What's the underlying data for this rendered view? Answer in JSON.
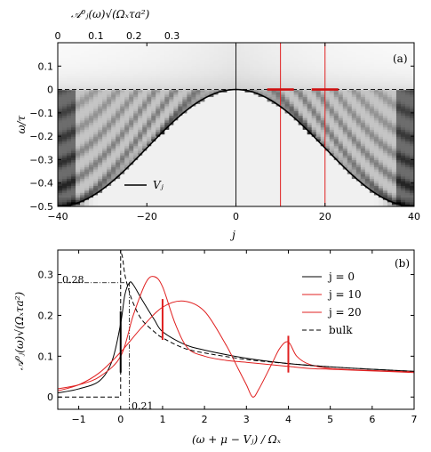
{
  "chart_data": [
    {
      "type": "heatmap",
      "panel_label": "(a)",
      "xlabel": "j",
      "ylabel": "ω/τ",
      "xlim": [
        -40,
        40
      ],
      "ylim": [
        -0.5,
        0.2
      ],
      "xticks": [
        "−40",
        "−20",
        "0",
        "20",
        "40"
      ],
      "yticks": [
        "−0.5",
        "−0.4",
        "−0.3",
        "−0.2",
        "−0.1",
        "0",
        "0.1"
      ],
      "colorbar": {
        "label": "𝒜⁰ⱼ(ω)√(Ωₓτa²)",
        "ticks": [
          "0",
          "0.1",
          "0.2",
          "0.3"
        ],
        "range": [
          0,
          0.35
        ],
        "scale": "white-to-black"
      },
      "curve_label": "Vⱼ",
      "curve": "V_j = -0.5 * (1 - cos(pi*j/40)) / 2 ... cosine band from 0 at j=0 to -0.5 at j=±40",
      "vertical_red_lines_j": [
        10,
        20
      ],
      "red_markers": [
        {
          "j0": 7,
          "j1": 13,
          "w": 0.0
        },
        {
          "j0": 17,
          "j1": 23,
          "w": 0.0
        }
      ],
      "dashed_hline_w": 0
    },
    {
      "type": "line",
      "panel_label": "(b)",
      "xlabel": "(ω + μ − Vⱼ) / Ωₓ",
      "ylabel": "𝒜⁰ⱼ(ω)√(Ωₓτa²)",
      "xlim": [
        -1.5,
        7
      ],
      "ylim": [
        -0.03,
        0.36
      ],
      "xticks": [
        "−1",
        "0",
        "1",
        "2",
        "3",
        "4",
        "5",
        "6",
        "7"
      ],
      "yticks": [
        "0",
        "0.1",
        "0.2",
        "0.3"
      ],
      "annotations": {
        "peak_value": "0.28",
        "peak_position": "0.21"
      },
      "series": [
        {
          "name": "j = 0",
          "color": "#000000",
          "style": "solid",
          "x": [
            -1.5,
            -1.0,
            -0.5,
            -0.2,
            0.0,
            0.1,
            0.21,
            0.3,
            0.5,
            0.8,
            1.0,
            1.5,
            2.0,
            3.0,
            4.0,
            5.0,
            6.0,
            7.0
          ],
          "y": [
            0.01,
            0.02,
            0.04,
            0.09,
            0.18,
            0.25,
            0.28,
            0.275,
            0.24,
            0.19,
            0.16,
            0.13,
            0.115,
            0.095,
            0.082,
            0.074,
            0.068,
            0.063
          ]
        },
        {
          "name": "j = 10",
          "color": "#e02020",
          "style": "solid",
          "x": [
            -1.5,
            -1.0,
            -0.5,
            0.0,
            0.3,
            0.6,
            0.8,
            1.0,
            1.3,
            1.6,
            2.0,
            2.5,
            3.0,
            3.5,
            4.0,
            4.5,
            5.0,
            6.0,
            7.0
          ],
          "y": [
            0.02,
            0.03,
            0.05,
            0.1,
            0.2,
            0.28,
            0.295,
            0.27,
            0.18,
            0.12,
            0.1,
            0.09,
            0.085,
            0.08,
            0.075,
            0.07,
            0.068,
            0.064,
            0.06
          ]
        },
        {
          "name": "j = 20",
          "color": "#e02020",
          "style": "solid",
          "x": [
            -1.5,
            -1.0,
            -0.5,
            0.0,
            0.5,
            1.0,
            1.5,
            2.0,
            2.5,
            2.8,
            3.0,
            3.15,
            3.3,
            3.6,
            3.8,
            4.0,
            4.2,
            4.5,
            5.0,
            6.0,
            7.0
          ],
          "y": [
            0.015,
            0.03,
            0.06,
            0.11,
            0.17,
            0.22,
            0.235,
            0.21,
            0.13,
            0.07,
            0.03,
            0.0,
            0.02,
            0.08,
            0.12,
            0.135,
            0.1,
            0.08,
            0.07,
            0.065,
            0.062
          ]
        },
        {
          "name": "bulk",
          "color": "#000000",
          "style": "dashed",
          "x": [
            0.0,
            0.0,
            0.05,
            0.1,
            0.2,
            0.3,
            0.5,
            0.8,
            1.0,
            1.5,
            2.0,
            3.0,
            4.0,
            5.0,
            6.0,
            7.0
          ],
          "y": [
            0.0,
            0.36,
            0.34,
            0.3,
            0.26,
            0.23,
            0.19,
            0.16,
            0.145,
            0.12,
            0.108,
            0.092,
            0.082,
            0.074,
            0.068,
            0.063
          ]
        }
      ],
      "vertical_markers": [
        {
          "x": 0.0,
          "y0": 0.06,
          "y1": 0.21,
          "color": "#000000"
        },
        {
          "x": 1.0,
          "y0": 0.14,
          "y1": 0.24,
          "color": "#e02020"
        },
        {
          "x": 4.0,
          "y0": 0.06,
          "y1": 0.15,
          "color": "#e02020"
        }
      ],
      "legend_position": "top-right"
    }
  ]
}
